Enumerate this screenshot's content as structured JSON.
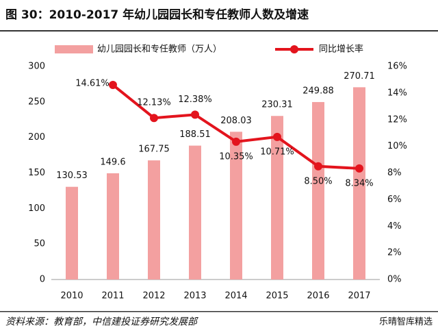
{
  "chart_data": {
    "type": "bar",
    "title": "图 30：2010-2017 年幼儿园园长和专任教师人数及增速",
    "source": "资料来源：教育部，中信建投证券研究发展部",
    "watermark": "乐晴智库精选",
    "categories": [
      "2010",
      "2011",
      "2012",
      "2013",
      "2014",
      "2015",
      "2016",
      "2017"
    ],
    "series": [
      {
        "name": "幼儿园园长和专任教师（万人）",
        "type": "bar",
        "color": "#f3a0a0",
        "values": [
          130.53,
          149.6,
          167.75,
          188.51,
          208.03,
          230.31,
          249.88,
          270.71
        ]
      },
      {
        "name": "同比增长率",
        "type": "line",
        "axis": "y2",
        "color": "#e3141d",
        "values": [
          null,
          14.61,
          12.13,
          12.38,
          10.35,
          10.71,
          8.5,
          8.34
        ],
        "value_labels": [
          null,
          "14.61%",
          "12.13%",
          "12.38%",
          "10.35%",
          "10.71%",
          "8.50%",
          "8.34%"
        ]
      }
    ],
    "ylim": [
      0,
      300
    ],
    "yticks": [
      0,
      50,
      100,
      150,
      200,
      250,
      300
    ],
    "y2lim": [
      0,
      16
    ],
    "y2ticks": [
      {
        "value": 0,
        "label": "0%"
      },
      {
        "value": 2,
        "label": "2%"
      },
      {
        "value": 4,
        "label": "4%"
      },
      {
        "value": 6,
        "label": "6%"
      },
      {
        "value": 8,
        "label": "8%"
      },
      {
        "value": 10,
        "label": "10%"
      },
      {
        "value": 12,
        "label": "12%"
      },
      {
        "value": 14,
        "label": "14%"
      },
      {
        "value": 16,
        "label": "16%"
      }
    ],
    "grid": false
  }
}
